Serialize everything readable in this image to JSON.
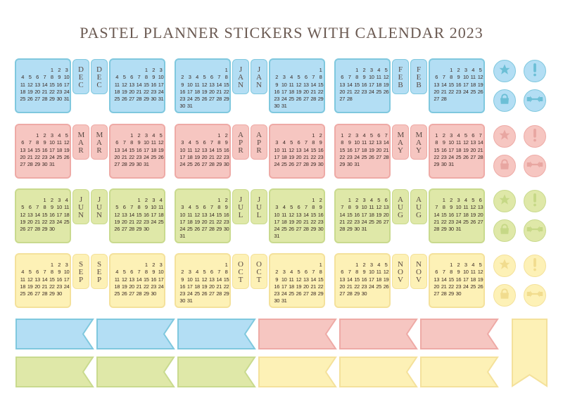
{
  "title": "PASTEL PLANNER STICKERS WITH CALENDAR 2023",
  "colors": {
    "blue": {
      "fill": "#b3def4",
      "border": "#7fc8de",
      "icon": "#6cbfd6"
    },
    "pink": {
      "fill": "#f6c6c1",
      "border": "#eeaaa6",
      "icon": "#e8a6a1"
    },
    "green": {
      "fill": "#dfe8a8",
      "border": "#c9da8e",
      "icon": "#c6d886"
    },
    "yellow": {
      "fill": "#fdf1b6",
      "border": "#f4e19b",
      "icon": "#f1dc8e"
    }
  },
  "months": [
    {
      "label": "DEC",
      "offset": 4,
      "days": 31,
      "color": "blue"
    },
    {
      "label": "JAN",
      "offset": 6,
      "days": 31,
      "color": "blue"
    },
    {
      "label": "FEB",
      "offset": 2,
      "days": 28,
      "color": "blue"
    },
    {
      "label": "MAR",
      "offset": 2,
      "days": 31,
      "color": "pink"
    },
    {
      "label": "APR",
      "offset": 5,
      "days": 30,
      "color": "pink"
    },
    {
      "label": "MAY",
      "offset": 0,
      "days": 31,
      "color": "pink"
    },
    {
      "label": "JUN",
      "offset": 3,
      "days": 30,
      "color": "green"
    },
    {
      "label": "JUL",
      "offset": 5,
      "days": 31,
      "color": "green"
    },
    {
      "label": "AUG",
      "offset": 1,
      "days": 31,
      "color": "green"
    },
    {
      "label": "SEP",
      "offset": 4,
      "days": 30,
      "color": "yellow"
    },
    {
      "label": "OCT",
      "offset": 6,
      "days": 31,
      "color": "yellow"
    },
    {
      "label": "NOV",
      "offset": 2,
      "days": 30,
      "color": "yellow"
    }
  ],
  "icon_rows": [
    "blue",
    "pink",
    "green",
    "yellow"
  ],
  "icons": [
    "star-icon",
    "exclamation-icon",
    "bag-icon",
    "dumbbell-icon"
  ],
  "banners": [
    [
      "blue",
      "blue",
      "blue",
      "pink",
      "pink",
      "pink"
    ],
    [
      "green",
      "green",
      "green",
      "yellow",
      "yellow",
      "yellow"
    ]
  ],
  "bookmark_color": "yellow"
}
